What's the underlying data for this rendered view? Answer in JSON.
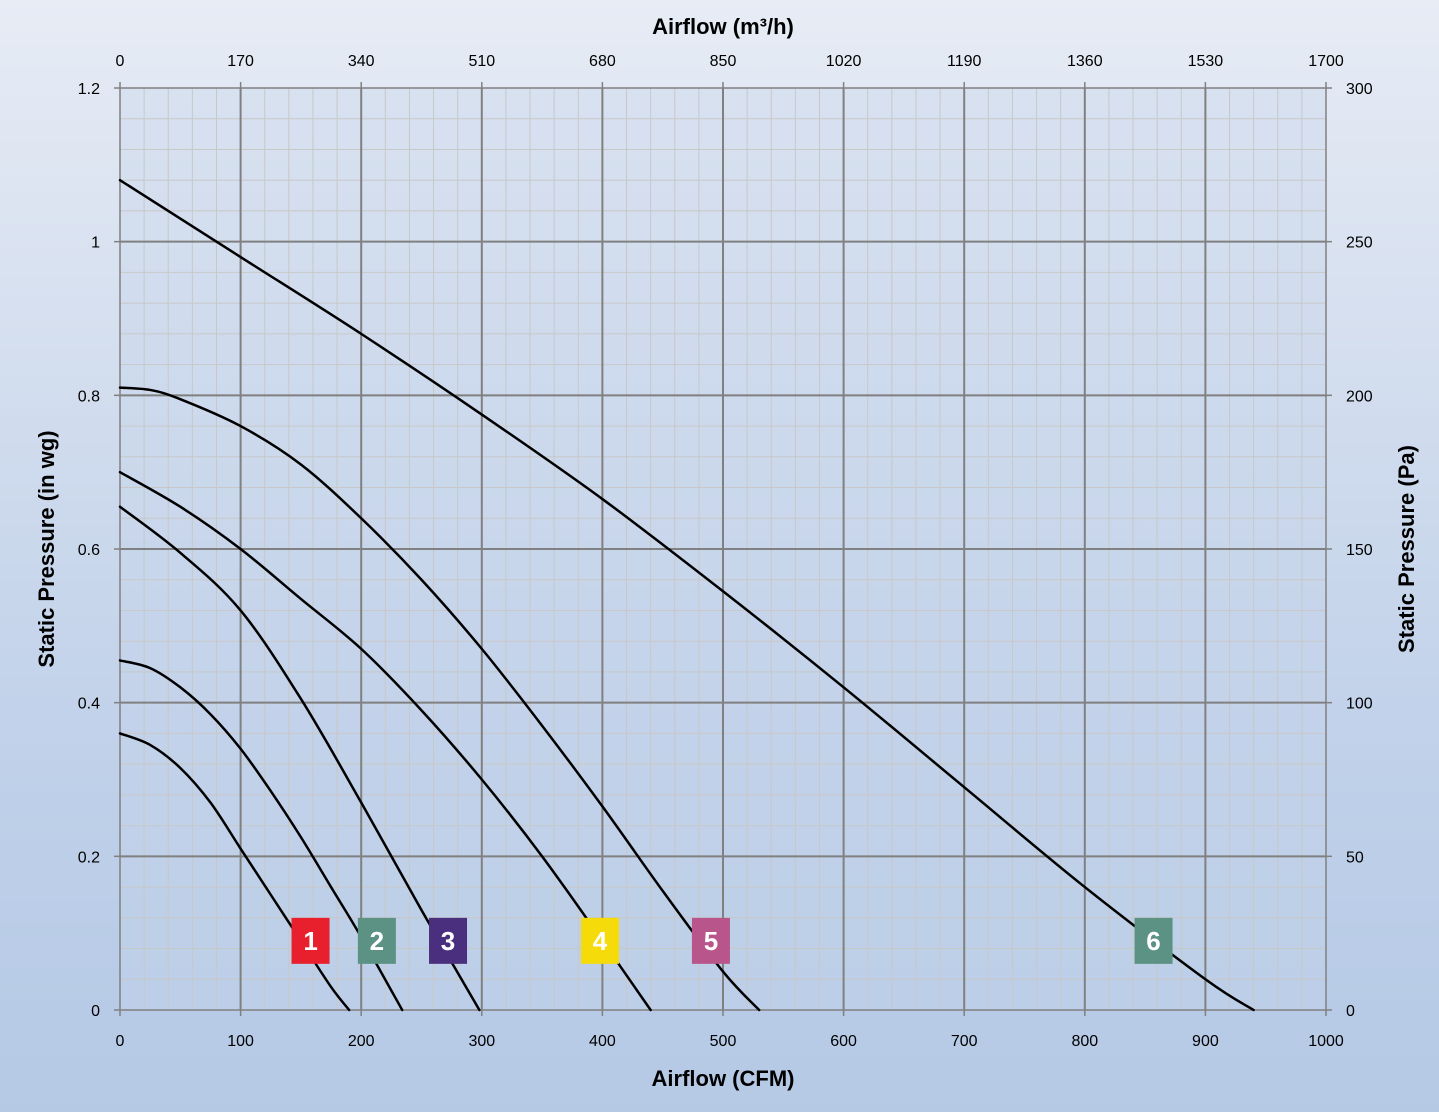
{
  "chart_data": {
    "type": "line",
    "title": "",
    "xlabel": "Airflow (CFM)",
    "ylabel": "Static Pressure (in wg)",
    "x2label": "Airflow (m³/h)",
    "y2label": "Static Pressure (Pa)",
    "xlim": [
      0,
      1000
    ],
    "ylim": [
      0,
      1.2
    ],
    "x2lim": [
      0,
      1700
    ],
    "y2lim": [
      0,
      300
    ],
    "x_ticks": [
      "0",
      "100",
      "200",
      "300",
      "400",
      "500",
      "600",
      "700",
      "800",
      "900",
      "1000"
    ],
    "y_ticks": [
      "0",
      "0.2",
      "0.4",
      "0.6",
      "0.8",
      "1",
      "1.2"
    ],
    "x2_ticks": [
      "0",
      "170",
      "340",
      "510",
      "680",
      "850",
      "1020",
      "1190",
      "1360",
      "1530",
      "1700"
    ],
    "y2_ticks": [
      "0",
      "50",
      "100",
      "150",
      "200",
      "250",
      "300"
    ],
    "grid": true,
    "legend": "none",
    "series": [
      {
        "name": "1",
        "badge_color": "#e8202e",
        "x": [
          0,
          25,
          50,
          75,
          100,
          125,
          150,
          175,
          190
        ],
        "y": [
          0.36,
          0.345,
          0.315,
          0.27,
          0.21,
          0.15,
          0.09,
          0.03,
          0
        ]
      },
      {
        "name": "2",
        "badge_color": "#5c9283",
        "x": [
          0,
          25,
          50,
          75,
          100,
          125,
          150,
          175,
          200,
          234
        ],
        "y": [
          0.455,
          0.445,
          0.42,
          0.385,
          0.34,
          0.285,
          0.225,
          0.16,
          0.095,
          0
        ]
      },
      {
        "name": "3",
        "badge_color": "#4a2f7e",
        "x": [
          0,
          50,
          100,
          150,
          200,
          250,
          298
        ],
        "y": [
          0.655,
          0.595,
          0.52,
          0.405,
          0.27,
          0.13,
          0
        ]
      },
      {
        "name": "4",
        "badge_color": "#f5db0a",
        "x": [
          0,
          50,
          100,
          150,
          200,
          250,
          300,
          350,
          400,
          440
        ],
        "y": [
          0.7,
          0.655,
          0.6,
          0.535,
          0.47,
          0.39,
          0.3,
          0.2,
          0.09,
          0
        ]
      },
      {
        "name": "5",
        "badge_color": "#b8558a",
        "x": [
          0,
          25,
          50,
          100,
          150,
          200,
          250,
          300,
          350,
          400,
          450,
          500,
          530
        ],
        "y": [
          0.81,
          0.807,
          0.795,
          0.76,
          0.71,
          0.64,
          0.56,
          0.47,
          0.37,
          0.265,
          0.155,
          0.05,
          0
        ]
      },
      {
        "name": "6",
        "badge_color": "#5c9283",
        "x": [
          0,
          100,
          200,
          300,
          400,
          500,
          600,
          700,
          800,
          900,
          940
        ],
        "y": [
          1.08,
          0.98,
          0.88,
          0.775,
          0.665,
          0.545,
          0.42,
          0.29,
          0.16,
          0.04,
          0
        ]
      }
    ],
    "badges": [
      {
        "label": "1",
        "x": 158,
        "y": 0.09,
        "color": "#e8202e"
      },
      {
        "label": "2",
        "x": 213,
        "y": 0.09,
        "color": "#5c9283"
      },
      {
        "label": "3",
        "x": 272,
        "y": 0.09,
        "color": "#4a2f7e"
      },
      {
        "label": "4",
        "x": 398,
        "y": 0.09,
        "color": "#f5db0a"
      },
      {
        "label": "5",
        "x": 490,
        "y": 0.09,
        "color": "#b8558a"
      },
      {
        "label": "6",
        "x": 857,
        "y": 0.09,
        "color": "#5c9283"
      }
    ],
    "line_color": "#000000",
    "major_grid_color": "#808080",
    "minor_grid_color": "#c8c8c8"
  }
}
